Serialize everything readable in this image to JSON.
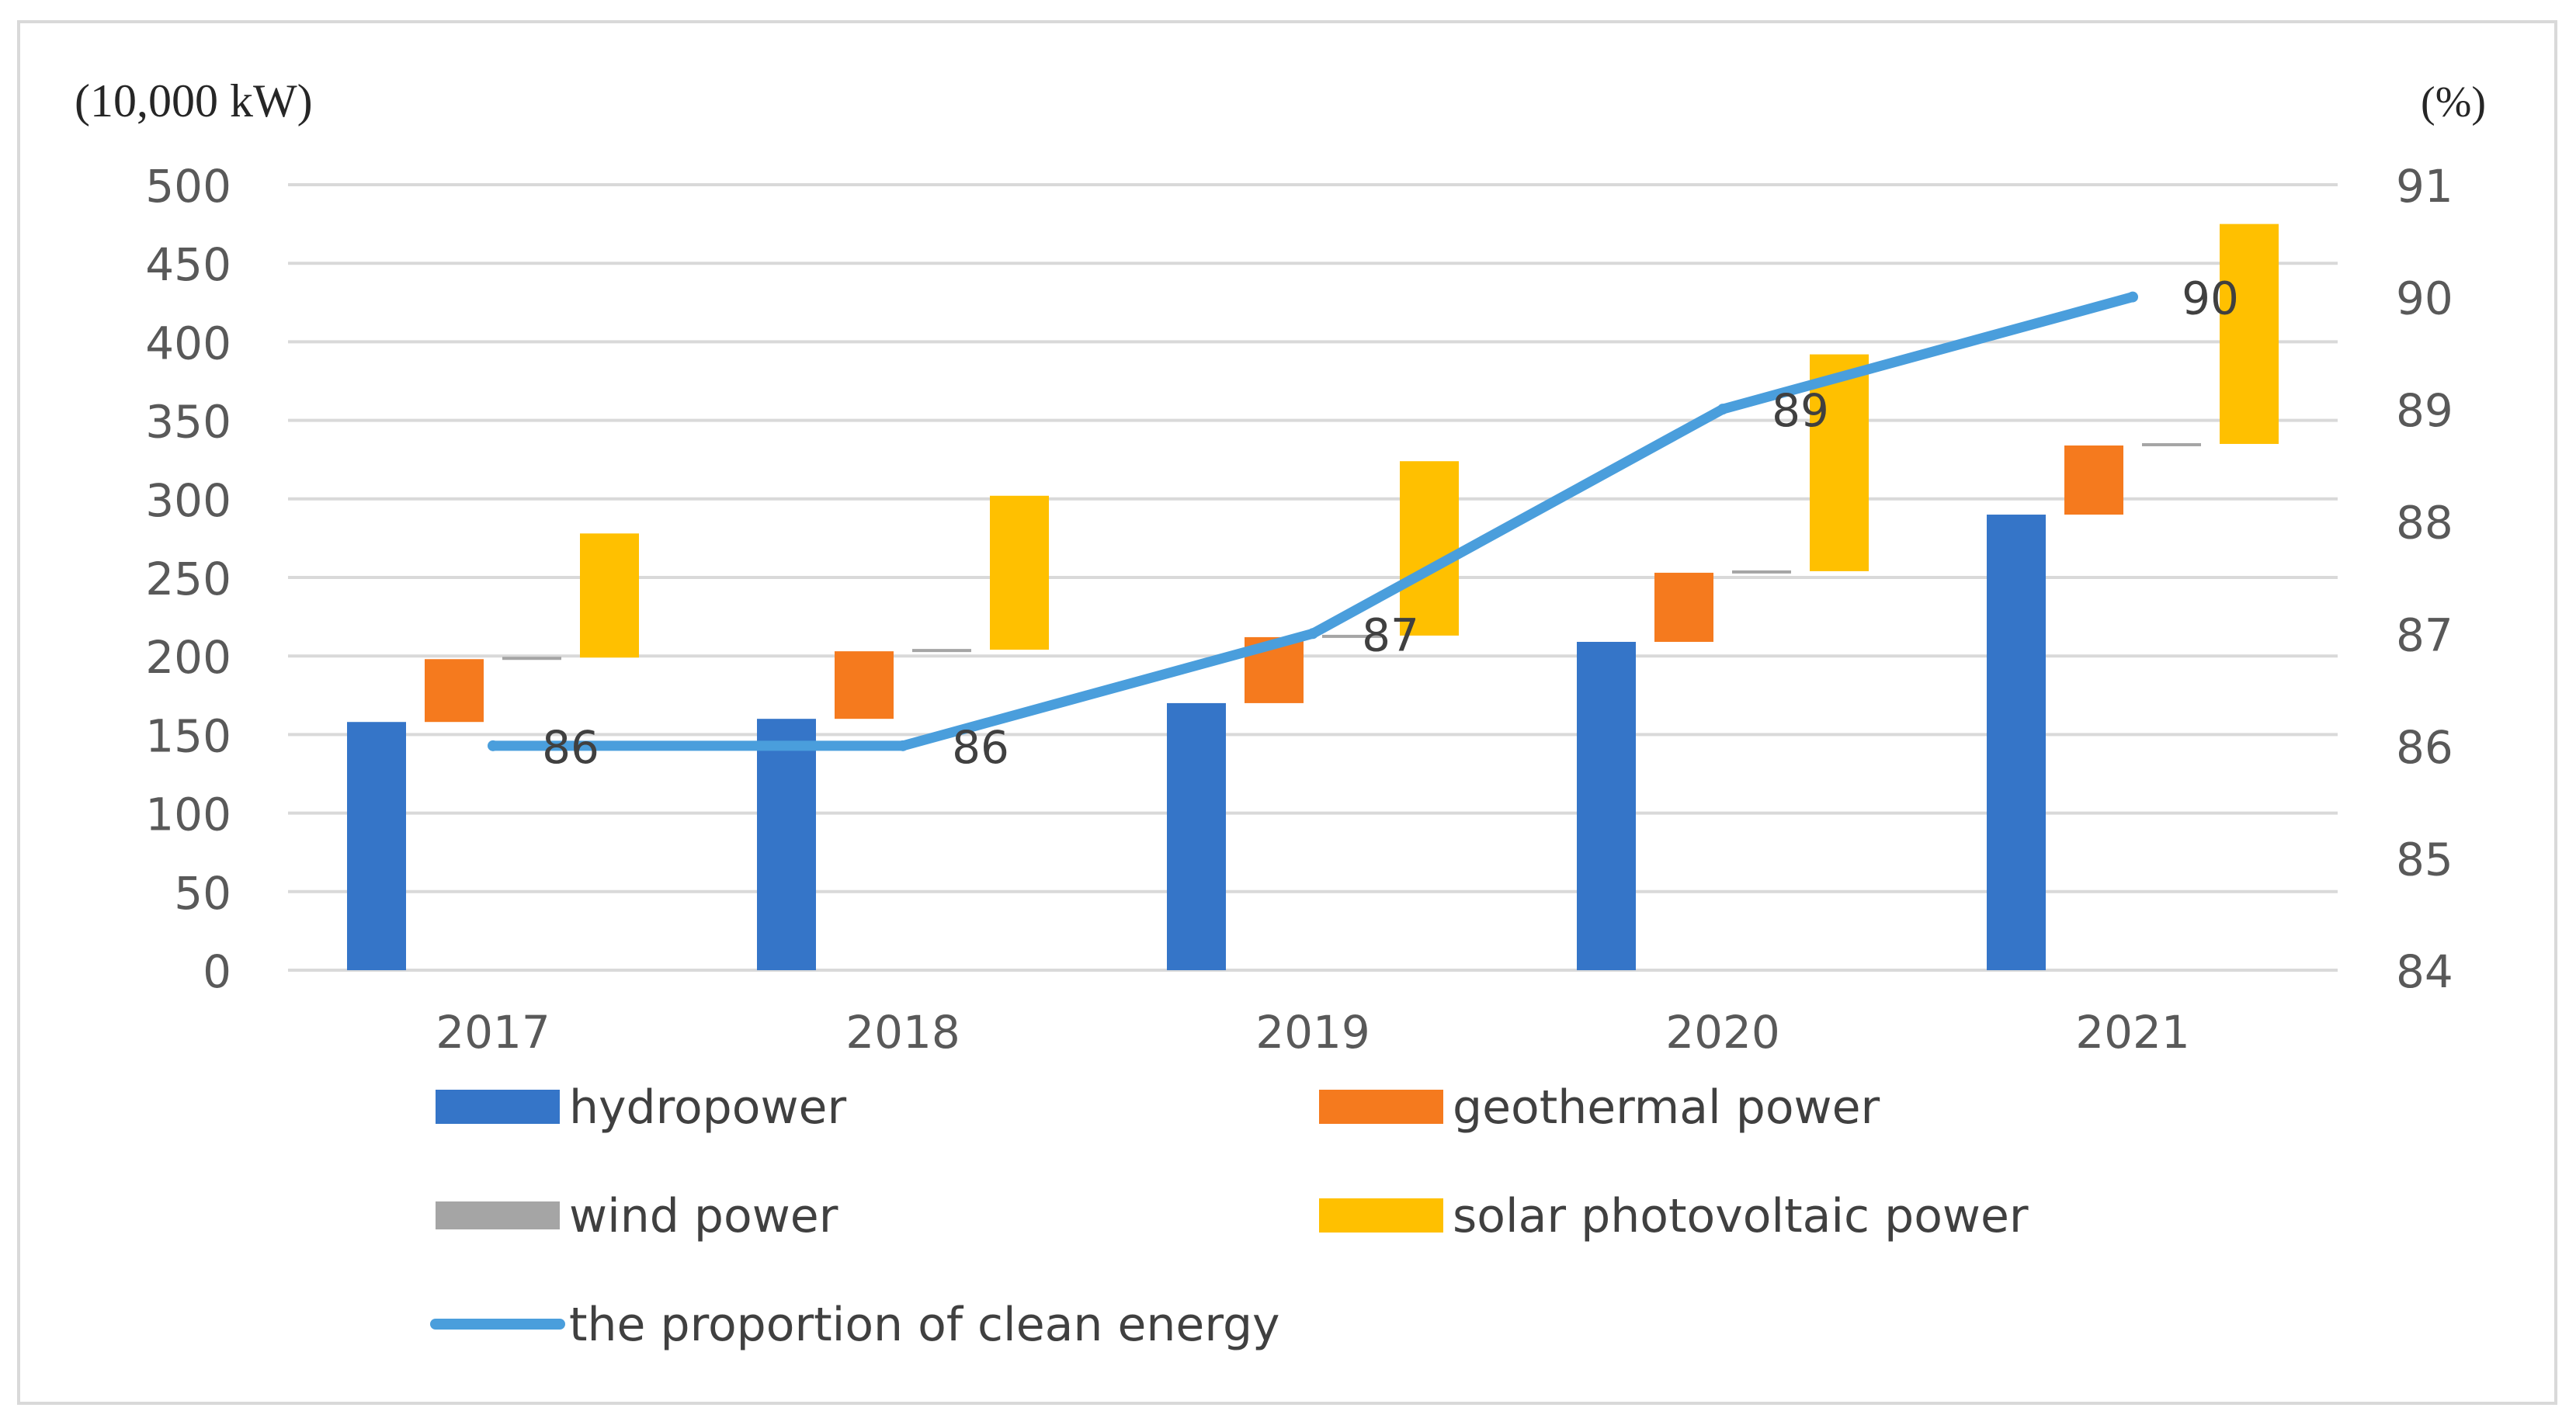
{
  "chart_data": {
    "type": "stacked-bar-with-line",
    "categories": [
      "2017",
      "2018",
      "2019",
      "2020",
      "2021"
    ],
    "left_axis_unit": "(10,000 kW)",
    "right_axis_unit": "(%)",
    "ylim_left": [
      0,
      500
    ],
    "ylim_right": [
      84,
      91
    ],
    "left_ticks": [
      "0",
      "50",
      "100",
      "150",
      "200",
      "250",
      "300",
      "350",
      "400",
      "450",
      "500"
    ],
    "right_ticks": [
      "84",
      "85",
      "86",
      "87",
      "88",
      "89",
      "90",
      "91"
    ],
    "series": [
      {
        "name": "hydropower",
        "color": "#3575C8",
        "values": [
          158,
          160,
          170,
          209,
          290
        ]
      },
      {
        "name": "geothermal power",
        "color": "#F57A1E",
        "values": [
          40,
          43,
          42,
          44,
          44
        ]
      },
      {
        "name": "wind power",
        "color": "#A5A5A5",
        "values": [
          1,
          1,
          1,
          1,
          1
        ]
      },
      {
        "name": "solar photovoltaic power",
        "color": "#FFC000",
        "values": [
          79,
          98,
          111,
          138,
          140
        ]
      }
    ],
    "line": {
      "name": "the proportion of clean energy",
      "color": "#4A9EDC",
      "values": [
        86,
        86,
        87,
        89,
        90
      ],
      "labels": [
        "86",
        "86",
        "87",
        "89",
        "90"
      ]
    },
    "grid": true,
    "legend_position": "bottom"
  }
}
